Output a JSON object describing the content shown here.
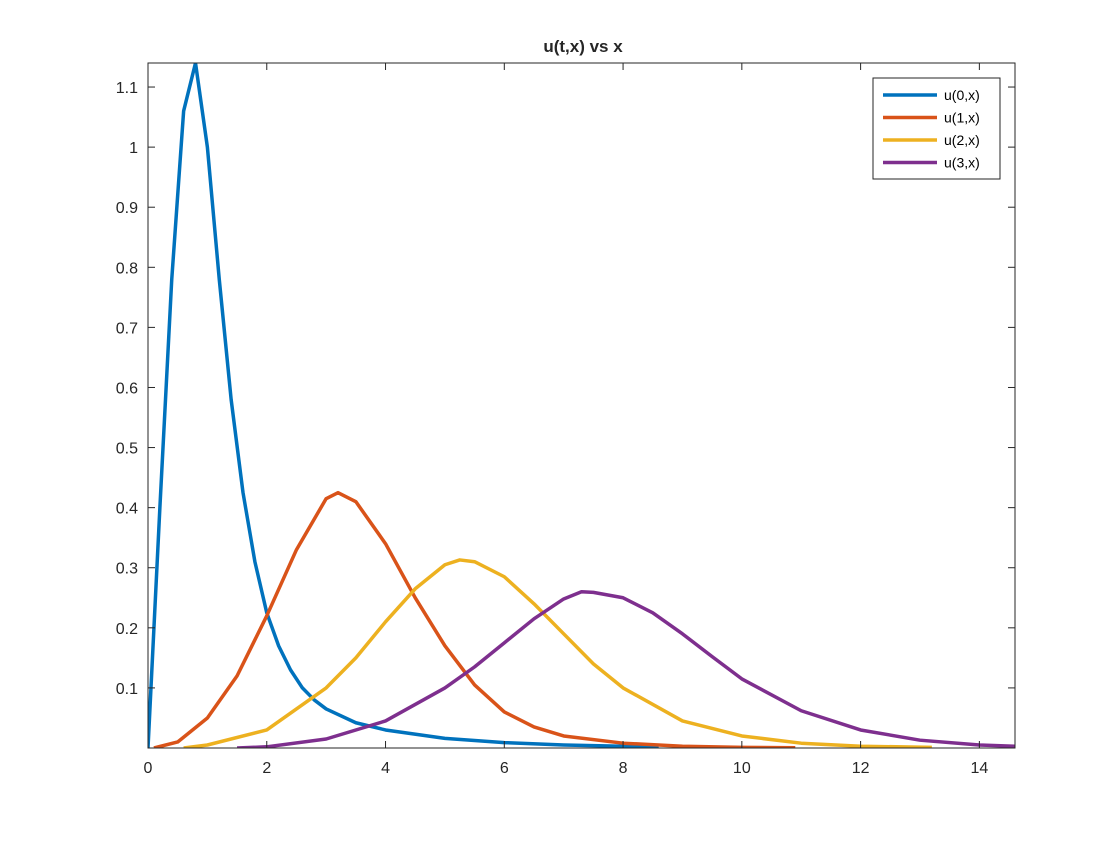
{
  "chart_data": {
    "type": "line",
    "title": "u(t,x) vs x",
    "xlabel": "",
    "ylabel": "",
    "xlim": [
      0,
      14.6
    ],
    "ylim": [
      0,
      1.14
    ],
    "xticks": [
      0,
      2,
      4,
      6,
      8,
      10,
      12,
      14
    ],
    "yticks": [
      0.1,
      0.2,
      0.3,
      0.4,
      0.5,
      0.6,
      0.7,
      0.8,
      0.9,
      1,
      1.1
    ],
    "grid": false,
    "legend_position": "top-right",
    "series": [
      {
        "name": "u(0,x)",
        "color": "#0072BD",
        "points": [
          [
            0,
            0
          ],
          [
            0.2,
            0.4
          ],
          [
            0.4,
            0.78
          ],
          [
            0.6,
            1.06
          ],
          [
            0.8,
            1.14
          ],
          [
            1.0,
            1.0
          ],
          [
            1.2,
            0.78
          ],
          [
            1.4,
            0.58
          ],
          [
            1.6,
            0.425
          ],
          [
            1.8,
            0.31
          ],
          [
            2.0,
            0.225
          ],
          [
            2.2,
            0.17
          ],
          [
            2.4,
            0.13
          ],
          [
            2.6,
            0.1
          ],
          [
            2.8,
            0.08
          ],
          [
            3.0,
            0.065
          ],
          [
            3.5,
            0.042
          ],
          [
            4.0,
            0.03
          ],
          [
            5.0,
            0.016
          ],
          [
            6.0,
            0.009
          ],
          [
            7.0,
            0.005
          ],
          [
            8.0,
            0.003
          ],
          [
            8.6,
            0.002
          ]
        ]
      },
      {
        "name": "u(1,x)",
        "color": "#D95319",
        "points": [
          [
            0.1,
            0
          ],
          [
            0.5,
            0.01
          ],
          [
            1.0,
            0.05
          ],
          [
            1.5,
            0.12
          ],
          [
            2.0,
            0.22
          ],
          [
            2.5,
            0.33
          ],
          [
            3.0,
            0.415
          ],
          [
            3.2,
            0.425
          ],
          [
            3.5,
            0.41
          ],
          [
            4.0,
            0.34
          ],
          [
            4.5,
            0.25
          ],
          [
            5.0,
            0.17
          ],
          [
            5.5,
            0.105
          ],
          [
            6.0,
            0.06
          ],
          [
            6.5,
            0.035
          ],
          [
            7.0,
            0.02
          ],
          [
            8.0,
            0.008
          ],
          [
            9.0,
            0.003
          ],
          [
            10.0,
            0.001
          ],
          [
            10.9,
            0.0005
          ]
        ]
      },
      {
        "name": "u(2,x)",
        "color": "#EDB120",
        "points": [
          [
            0.6,
            0
          ],
          [
            1.0,
            0.005
          ],
          [
            2.0,
            0.03
          ],
          [
            3.0,
            0.1
          ],
          [
            3.5,
            0.15
          ],
          [
            4.0,
            0.21
          ],
          [
            4.5,
            0.265
          ],
          [
            5.0,
            0.305
          ],
          [
            5.25,
            0.313
          ],
          [
            5.5,
            0.31
          ],
          [
            6.0,
            0.285
          ],
          [
            6.5,
            0.24
          ],
          [
            7.0,
            0.19
          ],
          [
            7.5,
            0.14
          ],
          [
            8.0,
            0.1
          ],
          [
            9.0,
            0.045
          ],
          [
            10.0,
            0.02
          ],
          [
            11.0,
            0.008
          ],
          [
            12.0,
            0.003
          ],
          [
            13.2,
            0.001
          ]
        ]
      },
      {
        "name": "u(3,x)",
        "color": "#7E2F8E",
        "points": [
          [
            1.5,
            0
          ],
          [
            2.0,
            0.002
          ],
          [
            3.0,
            0.015
          ],
          [
            4.0,
            0.045
          ],
          [
            5.0,
            0.1
          ],
          [
            5.5,
            0.135
          ],
          [
            6.0,
            0.175
          ],
          [
            6.5,
            0.215
          ],
          [
            7.0,
            0.248
          ],
          [
            7.3,
            0.26
          ],
          [
            7.5,
            0.259
          ],
          [
            8.0,
            0.25
          ],
          [
            8.5,
            0.225
          ],
          [
            9.0,
            0.19
          ],
          [
            9.5,
            0.152
          ],
          [
            10.0,
            0.115
          ],
          [
            11.0,
            0.062
          ],
          [
            12.0,
            0.03
          ],
          [
            13.0,
            0.013
          ],
          [
            14.0,
            0.005
          ],
          [
            14.6,
            0.003
          ]
        ]
      }
    ]
  }
}
